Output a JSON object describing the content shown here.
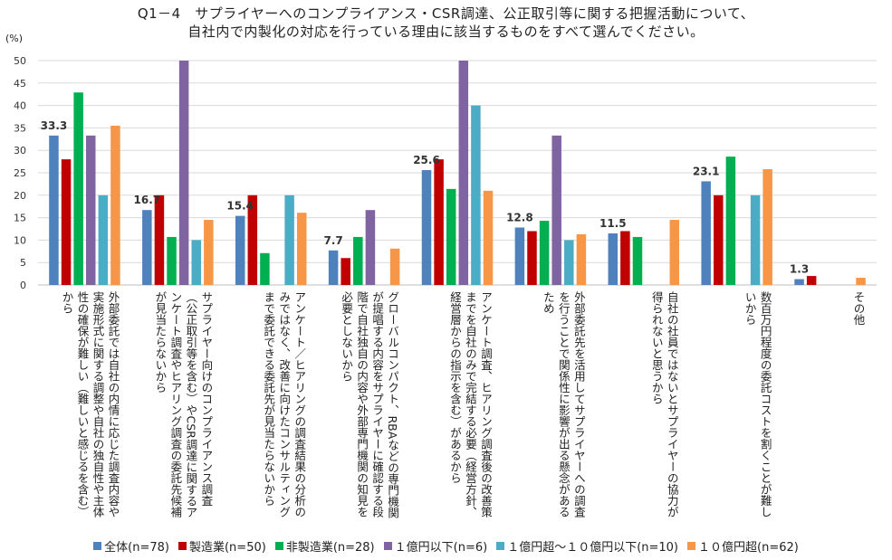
{
  "chart_data": {
    "type": "bar",
    "title_lines": [
      "Q1－4　サプライヤーへのコンプライアンス・CSR調達、公正取引等に関する把握活動について、",
      "自社内で内製化の対応を行っている理由に該当するものをすべて選んでください。"
    ],
    "ylabel": "(%)",
    "ylim": [
      0,
      50
    ],
    "yticks": [
      0,
      5,
      10,
      15,
      20,
      25,
      30,
      35,
      40,
      45,
      50
    ],
    "grid": true,
    "legend_position": "bottom",
    "categories": [
      "外部委託では自社の内情に応じた調査内容や実施形式に関する調整や自社の独自性や主体性の確保が難しい（難しいと感じるを含む）から",
      "サプライヤー向けのコンプライアンス調査（公正取引等を含む）やCSR調達に関するアンケート調査やヒアリング調査の委託先候補が見当たらないから",
      "アンケート／ヒアリングの調査結果の分析のみではなく、改善に向けたコンサルティングまで委託できる委託先が見当たらないから",
      "グローバルコンパクト、RBAなどの専門機関が提唱する内容をサプライヤーに確認する段階で自社独自の内容や外部専門機関の知見を必要としないから",
      "アンケート調査、ヒアリング調査後の改善策までを自社のみで完結する必要（経営方針、経営層からの指示を含む）があるから",
      "外部委託先を活用してサプライヤーへの調査を行うことで関係性に影響が出る懸念があるため",
      "自社の社員ではないとサプライヤーの協力が得られないと思うから",
      "数百万円程度の委託コストを割くことが難しいから",
      "その他"
    ],
    "series": [
      {
        "name": "全体(n=78)",
        "color": "#4F81BD",
        "values": [
          33.3,
          16.7,
          15.4,
          7.7,
          25.6,
          12.8,
          11.5,
          23.1,
          1.3
        ]
      },
      {
        "name": "製造業(n=50)",
        "color": "#C00000",
        "values": [
          28,
          20,
          20,
          6,
          28,
          12,
          12,
          20,
          2
        ]
      },
      {
        "name": "非製造業(n=28)",
        "color": "#00B050",
        "values": [
          42.9,
          10.7,
          7.1,
          10.7,
          21.4,
          14.3,
          10.7,
          28.6,
          0
        ]
      },
      {
        "name": "１億円以下(n=6)",
        "color": "#8064A2",
        "values": [
          33.3,
          50,
          0,
          16.7,
          50,
          33.3,
          0,
          0,
          0
        ]
      },
      {
        "name": "１億円超～１０億円以下(n=10)",
        "color": "#4BACC6",
        "values": [
          20,
          10,
          20,
          0,
          40,
          10,
          0,
          20,
          0
        ]
      },
      {
        "name": "１０億円超(n=62)",
        "color": "#F79646",
        "values": [
          35.5,
          14.5,
          16.1,
          8.1,
          21,
          11.3,
          14.5,
          25.8,
          1.6
        ]
      }
    ],
    "data_labels": [
      "33.3",
      "16.7",
      "15.4",
      "7.7",
      "25.6",
      "12.8",
      "11.5",
      "23.1",
      "1.3"
    ]
  }
}
